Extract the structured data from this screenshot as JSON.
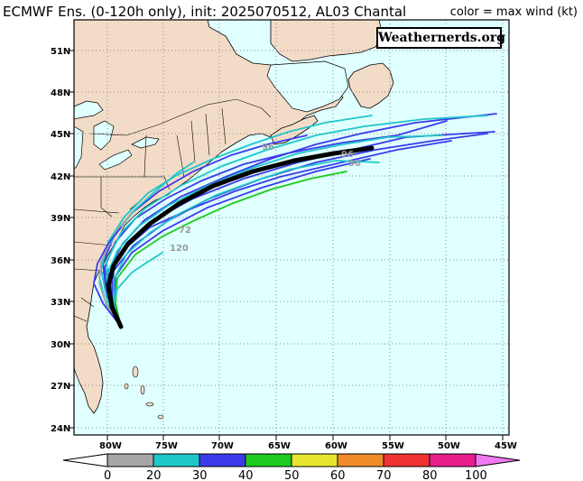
{
  "header": {
    "title": "ECMWF Ens. (0-120h only), init: 2025070512, AL03 Chantal",
    "legend_note": "color = max wind (kt)"
  },
  "watermark": "Weathernerds.org",
  "axes": {
    "lat_labels": [
      "51N",
      "48N",
      "45N",
      "42N",
      "39N",
      "36N",
      "33N",
      "30N",
      "27N",
      "24N"
    ],
    "lon_labels": [
      "80W",
      "75W",
      "70W",
      "65W",
      "60W",
      "55W",
      "50W",
      "45W"
    ]
  },
  "forecast_hour_labels": [
    "96",
    "96",
    "96",
    "120",
    "72"
  ],
  "colorbar": {
    "ticks": [
      "0",
      "20",
      "30",
      "40",
      "50",
      "60",
      "70",
      "80",
      "100"
    ],
    "colors": [
      "#a6a6a6",
      "#1ec8c8",
      "#3b3bec",
      "#1ecb1e",
      "#e6e631",
      "#f08c28",
      "#f03232",
      "#e61e8c",
      "#f078f0"
    ],
    "under_color": "#ffffff"
  },
  "map_colors": {
    "ocean": "#e0ffff",
    "land": "#f3dcc7",
    "grid": "#8c8c8c",
    "mean_track": "#000000"
  }
}
